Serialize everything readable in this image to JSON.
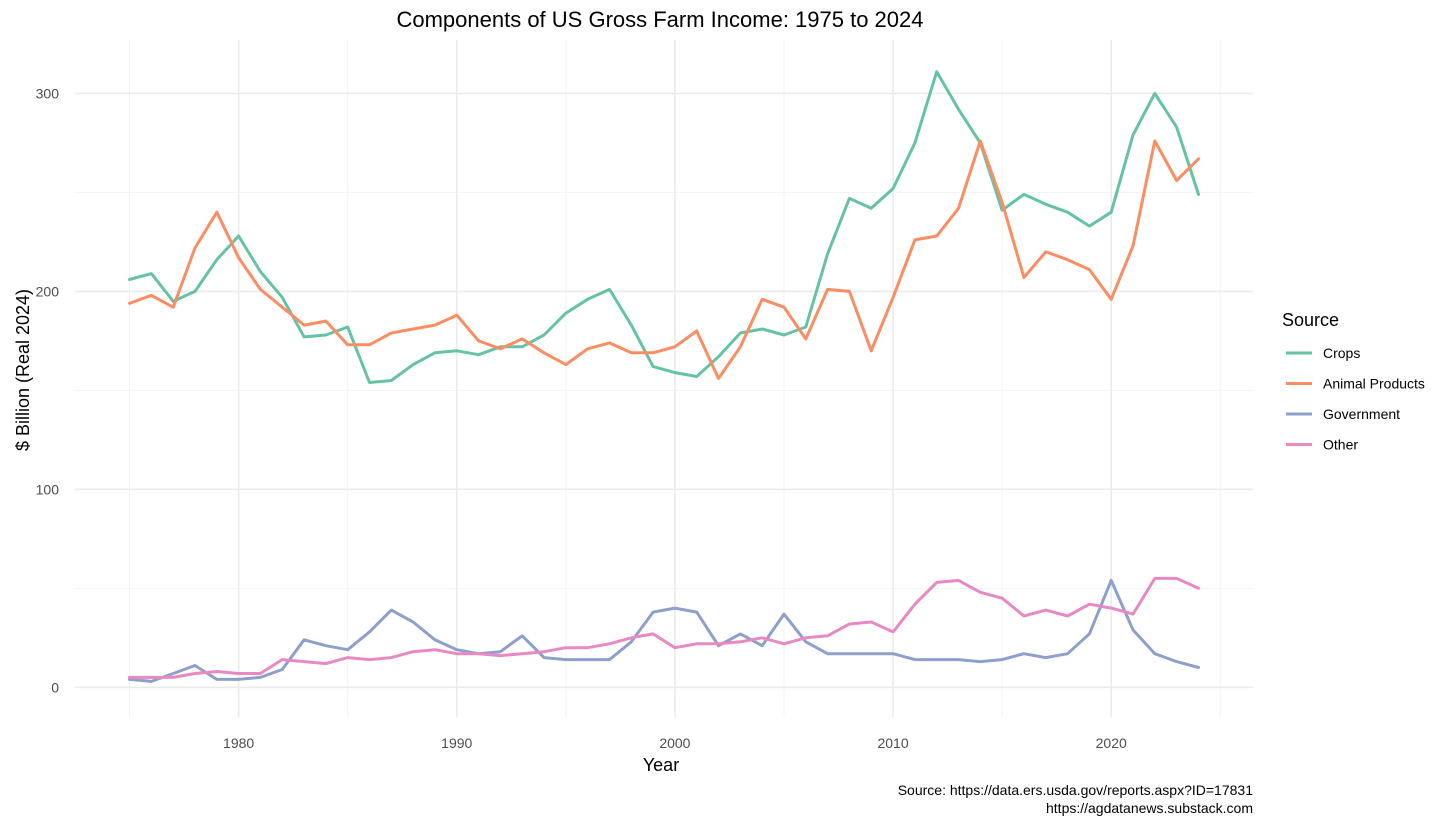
{
  "chart_data": {
    "type": "line",
    "title": "Components of US Gross Farm Income: 1975 to 2024",
    "xlabel": "Year",
    "ylabel": "$ Billion (Real 2024)",
    "xlim": [
      1972.5,
      2026.5
    ],
    "ylim": [
      -15,
      327
    ],
    "x_ticks": [
      1980,
      1990,
      2000,
      2010,
      2020
    ],
    "y_ticks": [
      0,
      100,
      200,
      300
    ],
    "grid": true,
    "legend": {
      "title": "Source",
      "position": "right",
      "entries": [
        "Crops",
        "Animal Products",
        "Government",
        "Other"
      ]
    },
    "caption": [
      "Source: https://data.ers.usda.gov/reports.aspx?ID=17831",
      "https://agdatanews.substack.com"
    ],
    "x": [
      1975,
      1976,
      1977,
      1978,
      1979,
      1980,
      1981,
      1982,
      1983,
      1984,
      1985,
      1986,
      1987,
      1988,
      1989,
      1990,
      1991,
      1992,
      1993,
      1994,
      1995,
      1996,
      1997,
      1998,
      1999,
      2000,
      2001,
      2002,
      2003,
      2004,
      2005,
      2006,
      2007,
      2008,
      2009,
      2010,
      2011,
      2012,
      2013,
      2014,
      2015,
      2016,
      2017,
      2018,
      2019,
      2020,
      2021,
      2022,
      2023,
      2024
    ],
    "series": [
      {
        "name": "Crops",
        "color": "#66c2a5",
        "values": [
          206,
          209,
          195,
          200,
          216,
          228,
          210,
          197,
          177,
          178,
          182,
          154,
          155,
          163,
          169,
          170,
          168,
          172,
          172,
          178,
          189,
          196,
          201,
          183,
          162,
          159,
          157,
          167,
          179,
          181,
          178,
          182,
          219,
          247,
          242,
          252,
          275,
          311,
          292,
          275,
          241,
          249,
          244,
          240,
          233,
          240,
          279,
          300,
          283,
          249
        ]
      },
      {
        "name": "Animal Products",
        "color": "#fc8d62",
        "values": [
          194,
          198,
          192,
          222,
          240,
          217,
          201,
          192,
          183,
          185,
          173,
          173,
          179,
          181,
          183,
          188,
          175,
          171,
          176,
          169,
          163,
          171,
          174,
          169,
          169,
          172,
          180,
          156,
          172,
          196,
          192,
          176,
          201,
          200,
          170,
          197,
          226,
          228,
          242,
          276,
          245,
          207,
          220,
          216,
          211,
          196,
          223,
          276,
          256,
          267
        ]
      },
      {
        "name": "Government",
        "color": "#8da0cb",
        "values": [
          4,
          3,
          7,
          11,
          4,
          4,
          5,
          9,
          24,
          21,
          19,
          28,
          39,
          33,
          24,
          19,
          17,
          18,
          26,
          15,
          14,
          14,
          14,
          23,
          38,
          40,
          38,
          21,
          27,
          21,
          37,
          23,
          17,
          17,
          17,
          17,
          14,
          14,
          14,
          13,
          14,
          17,
          15,
          17,
          27,
          54,
          29,
          17,
          13,
          10
        ]
      },
      {
        "name": "Other",
        "color": "#e78ac3",
        "values": [
          5,
          5,
          5,
          7,
          8,
          7,
          7,
          14,
          13,
          12,
          15,
          14,
          15,
          18,
          19,
          17,
          17,
          16,
          17,
          18,
          20,
          20,
          22,
          25,
          27,
          20,
          22,
          22,
          23,
          25,
          22,
          25,
          26,
          32,
          33,
          28,
          42,
          53,
          54,
          48,
          45,
          36,
          39,
          36,
          42,
          40,
          37,
          55,
          55,
          50
        ]
      }
    ]
  }
}
